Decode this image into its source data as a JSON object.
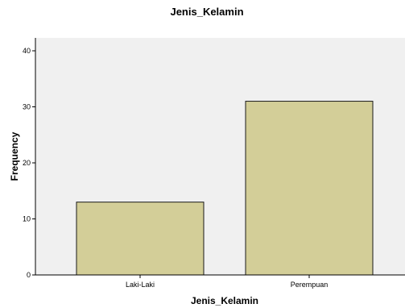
{
  "chart_data": {
    "type": "bar",
    "title": "Jenis_Kelamin",
    "xlabel": "Jenis_Kelamin",
    "ylabel": "Frequency",
    "categories": [
      "Laki-Laki",
      "Perempuan"
    ],
    "values": [
      13,
      31
    ],
    "ylim": [
      0,
      40
    ],
    "yticks": [
      0,
      10,
      20,
      30,
      40
    ],
    "grid": false,
    "legend": "none",
    "colors": {
      "bar_fill": "#d3ce98",
      "bar_stroke": "#1a1a1a",
      "plot_background": "#f0f0f0",
      "axis": "#000000"
    }
  }
}
